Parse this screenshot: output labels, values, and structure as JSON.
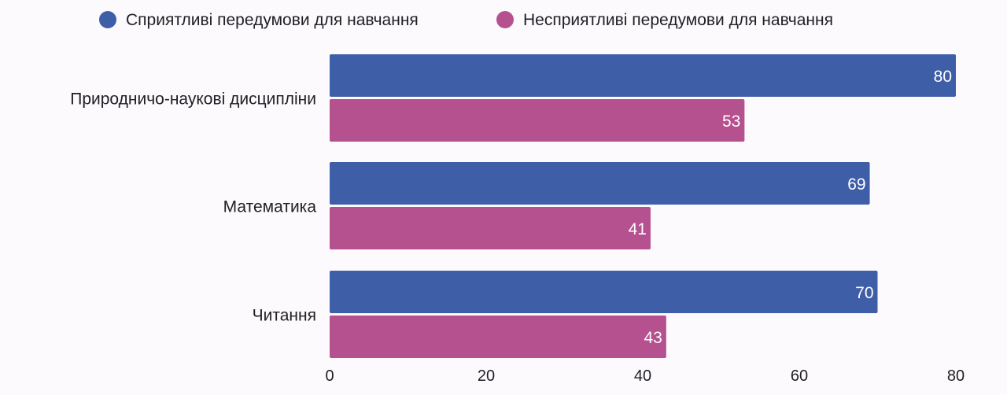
{
  "chart_data": {
    "type": "bar",
    "orientation": "horizontal",
    "categories": [
      "Природничо-наукові дисципліни",
      "Математика",
      "Читання"
    ],
    "series": [
      {
        "name": "Сприятливі передумови для навчання",
        "color": "#3f5ea8",
        "values": [
          80,
          69,
          70
        ]
      },
      {
        "name": "Несприятливі передумови для навчання",
        "color": "#b5518f",
        "values": [
          53,
          41,
          43
        ]
      }
    ],
    "x_ticks": [
      0,
      20,
      40,
      60,
      80
    ],
    "xlim": [
      0,
      80
    ],
    "legend_position": "top-center",
    "data_labels": true,
    "grid": false
  }
}
